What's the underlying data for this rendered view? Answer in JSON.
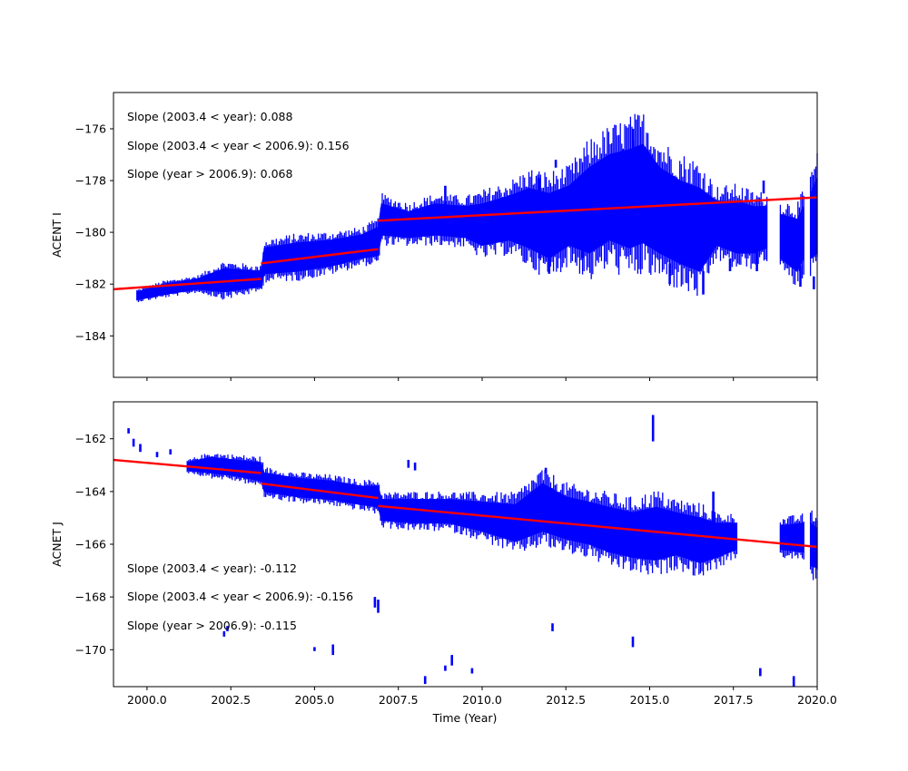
{
  "colors": {
    "data": "#0000ff",
    "fit": "#ff0000",
    "axes": "#000000",
    "background": "#ffffff"
  },
  "chart_data": [
    {
      "type": "scatter",
      "xlabel": "",
      "ylabel": "ACENT I",
      "xlim": [
        1999.0,
        2020.0
      ],
      "ylim": [
        -185.6,
        -174.6
      ],
      "xticks": [
        2000.0,
        2002.5,
        2005.0,
        2007.5,
        2010.0,
        2012.5,
        2015.0,
        2017.5,
        2020.0
      ],
      "xtick_labels": [
        "",
        "",
        "",
        "",
        "",
        "",
        "",
        "",
        ""
      ],
      "yticks": [
        -176,
        -178,
        -180,
        -182,
        -184
      ],
      "ytick_labels": [
        "−176",
        "−178",
        "−180",
        "−182",
        "−184"
      ],
      "annotations": [
        "Slope (2003.4 < year):  0.088",
        "Slope (2003.4 <  year < 2006.9): 0.156",
        "Slope (year > 2006.9):  0.068"
      ],
      "series": [
        {
          "kind": "band",
          "color": "#0000ff",
          "points": [
            {
              "x": 1999.7,
              "low": -182.6,
              "high": -182.3
            },
            {
              "x": 2000.5,
              "low": -182.4,
              "high": -182.0
            },
            {
              "x": 2001.5,
              "low": -182.2,
              "high": -181.8
            },
            {
              "x": 2002.3,
              "low": -182.3,
              "high": -181.4
            },
            {
              "x": 2003.4,
              "low": -182.1,
              "high": -181.5
            },
            {
              "x": 2003.5,
              "low": -181.6,
              "high": -180.6
            },
            {
              "x": 2004.5,
              "low": -181.5,
              "high": -180.4
            },
            {
              "x": 2005.5,
              "low": -181.3,
              "high": -180.3
            },
            {
              "x": 2006.4,
              "low": -181.0,
              "high": -180.1
            },
            {
              "x": 2006.9,
              "low": -180.9,
              "high": -179.8
            },
            {
              "x": 2007.0,
              "low": -180.1,
              "high": -178.9
            },
            {
              "x": 2007.8,
              "low": -180.2,
              "high": -179.2
            },
            {
              "x": 2008.6,
              "low": -180.1,
              "high": -178.9
            },
            {
              "x": 2009.5,
              "low": -180.2,
              "high": -179.0
            },
            {
              "x": 2010.0,
              "low": -180.5,
              "high": -178.9
            },
            {
              "x": 2010.8,
              "low": -180.3,
              "high": -178.6
            },
            {
              "x": 2011.4,
              "low": -180.6,
              "high": -178.3
            },
            {
              "x": 2012.0,
              "low": -181.0,
              "high": -178.5
            },
            {
              "x": 2012.6,
              "low": -180.5,
              "high": -178.2
            },
            {
              "x": 2013.2,
              "low": -180.8,
              "high": -177.5
            },
            {
              "x": 2013.8,
              "low": -180.3,
              "high": -177.0
            },
            {
              "x": 2014.4,
              "low": -180.6,
              "high": -176.8
            },
            {
              "x": 2014.8,
              "low": -180.4,
              "high": -176.6
            },
            {
              "x": 2015.3,
              "low": -180.8,
              "high": -177.5
            },
            {
              "x": 2015.9,
              "low": -181.2,
              "high": -178.0
            },
            {
              "x": 2016.5,
              "low": -181.5,
              "high": -178.3
            },
            {
              "x": 2017.0,
              "low": -180.5,
              "high": -178.8
            },
            {
              "x": 2017.6,
              "low": -180.8,
              "high": -178.8
            },
            {
              "x": 2018.1,
              "low": -180.8,
              "high": -179.0
            },
            {
              "x": 2018.5,
              "low": -180.6,
              "high": -179.0
            }
          ]
        },
        {
          "kind": "band",
          "color": "#0000ff",
          "points": [
            {
              "x": 2018.9,
              "low": -181.0,
              "high": -179.3
            },
            {
              "x": 2019.4,
              "low": -181.5,
              "high": -179.5
            },
            {
              "x": 2019.6,
              "low": -181.0,
              "high": -179.0
            }
          ]
        },
        {
          "kind": "band",
          "color": "#0000ff",
          "points": [
            {
              "x": 2019.8,
              "low": -181.0,
              "high": -178.5
            },
            {
              "x": 2020.0,
              "low": -180.8,
              "high": -177.9
            }
          ]
        },
        {
          "kind": "spikes",
          "color": "#0000ff",
          "points": [
            {
              "x": 2001.0,
              "low": -182.1,
              "high": -181.9
            },
            {
              "x": 2008.9,
              "low": -179.2,
              "high": -178.2
            },
            {
              "x": 2011.7,
              "low": -181.0,
              "high": -177.9
            },
            {
              "x": 2012.0,
              "low": -181.6,
              "high": -181.0
            },
            {
              "x": 2012.2,
              "low": -177.5,
              "high": -177.2
            },
            {
              "x": 2013.0,
              "low": -181.0,
              "high": -180.2
            },
            {
              "x": 2014.2,
              "low": -177.3,
              "high": -176.8
            },
            {
              "x": 2014.5,
              "low": -177.5,
              "high": -176.0
            },
            {
              "x": 2015.6,
              "low": -182.0,
              "high": -181.2
            },
            {
              "x": 2016.6,
              "low": -182.4,
              "high": -181.5
            },
            {
              "x": 2017.4,
              "low": -181.5,
              "high": -181.0
            },
            {
              "x": 2017.8,
              "low": -180.5,
              "high": -179.5
            },
            {
              "x": 2018.2,
              "low": -181.5,
              "high": -180.5
            },
            {
              "x": 2018.4,
              "low": -178.5,
              "high": -178.0
            },
            {
              "x": 2019.5,
              "low": -182.1,
              "high": -181.3
            },
            {
              "x": 2019.9,
              "low": -182.2,
              "high": -181.7
            }
          ]
        },
        {
          "kind": "fit",
          "color": "#ff0000",
          "segments": [
            {
              "x": [
                1999.0,
                2003.4
              ],
              "y": [
                -182.2,
                -181.8
              ]
            },
            {
              "x": [
                2003.4,
                2006.9
              ],
              "y": [
                -181.2,
                -180.65
              ]
            },
            {
              "x": [
                2006.9,
                2020.0
              ],
              "y": [
                -179.55,
                -178.65
              ]
            }
          ]
        }
      ]
    },
    {
      "type": "scatter",
      "xlabel": "Time (Year)",
      "ylabel": "ACNET J",
      "xlim": [
        1999.0,
        2020.0
      ],
      "ylim": [
        -171.4,
        -160.6
      ],
      "xticks": [
        2000.0,
        2002.5,
        2005.0,
        2007.5,
        2010.0,
        2012.5,
        2015.0,
        2017.5,
        2020.0
      ],
      "xtick_labels": [
        "2000.0",
        "2002.5",
        "2005.0",
        "2007.5",
        "2010.0",
        "2012.5",
        "2015.0",
        "2017.5",
        "2020.0"
      ],
      "yticks": [
        -162,
        -164,
        -166,
        -168,
        -170
      ],
      "ytick_labels": [
        "−162",
        "−164",
        "−166",
        "−168",
        "−170"
      ],
      "annotations": [
        "Slope (2003.4 < year):  -0.112",
        "Slope (2003.4 <  year < 2006.9): -0.156",
        "Slope (year > 2006.9):  -0.115"
      ],
      "series": [
        {
          "kind": "band",
          "color": "#0000ff",
          "points": [
            {
              "x": 2001.2,
              "low": -163.2,
              "high": -162.9
            },
            {
              "x": 2001.9,
              "low": -163.3,
              "high": -162.7
            },
            {
              "x": 2002.6,
              "low": -163.4,
              "high": -162.8
            },
            {
              "x": 2003.4,
              "low": -163.6,
              "high": -162.9
            },
            {
              "x": 2003.5,
              "low": -164.0,
              "high": -163.3
            },
            {
              "x": 2004.5,
              "low": -164.2,
              "high": -163.5
            },
            {
              "x": 2005.5,
              "low": -164.3,
              "high": -163.6
            },
            {
              "x": 2006.4,
              "low": -164.5,
              "high": -163.8
            },
            {
              "x": 2006.9,
              "low": -164.6,
              "high": -163.8
            },
            {
              "x": 2007.0,
              "low": -165.1,
              "high": -164.3
            },
            {
              "x": 2008.0,
              "low": -165.2,
              "high": -164.3
            },
            {
              "x": 2009.0,
              "low": -165.2,
              "high": -164.3
            },
            {
              "x": 2010.0,
              "low": -165.5,
              "high": -164.4
            },
            {
              "x": 2011.0,
              "low": -165.9,
              "high": -164.5
            },
            {
              "x": 2011.8,
              "low": -165.5,
              "high": -163.7
            },
            {
              "x": 2012.5,
              "low": -165.8,
              "high": -164.2
            },
            {
              "x": 2013.2,
              "low": -166.0,
              "high": -164.4
            },
            {
              "x": 2013.8,
              "low": -166.3,
              "high": -164.6
            },
            {
              "x": 2014.5,
              "low": -166.5,
              "high": -164.8
            },
            {
              "x": 2015.2,
              "low": -166.6,
              "high": -164.6
            },
            {
              "x": 2015.8,
              "low": -166.4,
              "high": -164.8
            },
            {
              "x": 2016.5,
              "low": -166.7,
              "high": -165.0
            },
            {
              "x": 2017.0,
              "low": -166.5,
              "high": -165.2
            },
            {
              "x": 2017.6,
              "low": -166.2,
              "high": -165.2
            }
          ]
        },
        {
          "kind": "band",
          "color": "#0000ff",
          "points": [
            {
              "x": 2018.9,
              "low": -166.2,
              "high": -165.3
            },
            {
              "x": 2019.6,
              "low": -166.3,
              "high": -165.2
            }
          ]
        },
        {
          "kind": "band",
          "color": "#0000ff",
          "points": [
            {
              "x": 2019.8,
              "low": -166.8,
              "high": -165.2
            },
            {
              "x": 2020.0,
              "low": -166.9,
              "high": -165.4
            }
          ]
        },
        {
          "kind": "spikes",
          "color": "#0000ff",
          "points": [
            {
              "x": 1999.45,
              "low": -161.8,
              "high": -161.6
            },
            {
              "x": 1999.6,
              "low": -162.3,
              "high": -162.0
            },
            {
              "x": 1999.8,
              "low": -162.5,
              "high": -162.2
            },
            {
              "x": 2000.3,
              "low": -162.7,
              "high": -162.5
            },
            {
              "x": 2000.7,
              "low": -162.6,
              "high": -162.4
            },
            {
              "x": 2002.3,
              "low": -169.5,
              "high": -169.3
            },
            {
              "x": 2002.4,
              "low": -169.3,
              "high": -169.1
            },
            {
              "x": 2005.0,
              "low": -170.05,
              "high": -169.9
            },
            {
              "x": 2005.55,
              "low": -170.2,
              "high": -169.8
            },
            {
              "x": 2007.8,
              "low": -163.1,
              "high": -162.8
            },
            {
              "x": 2008.0,
              "low": -163.2,
              "high": -162.9
            },
            {
              "x": 2008.3,
              "low": -171.3,
              "high": -171.0
            },
            {
              "x": 2008.9,
              "low": -170.8,
              "high": -170.6
            },
            {
              "x": 2009.1,
              "low": -170.6,
              "high": -170.2
            },
            {
              "x": 2009.7,
              "low": -170.9,
              "high": -170.7
            },
            {
              "x": 2006.8,
              "low": -168.4,
              "high": -168.0
            },
            {
              "x": 2006.9,
              "low": -168.6,
              "high": -168.1
            },
            {
              "x": 2011.9,
              "low": -163.3,
              "high": -163.1
            },
            {
              "x": 2012.1,
              "low": -169.3,
              "high": -169.0
            },
            {
              "x": 2014.5,
              "low": -169.9,
              "high": -169.5
            },
            {
              "x": 2015.1,
              "low": -162.1,
              "high": -161.1
            },
            {
              "x": 2016.9,
              "low": -165.3,
              "high": -164.0
            },
            {
              "x": 2018.3,
              "low": -171.0,
              "high": -170.7
            },
            {
              "x": 2019.3,
              "low": -171.4,
              "high": -171.0
            }
          ]
        },
        {
          "kind": "fit",
          "color": "#ff0000",
          "segments": [
            {
              "x": [
                1999.0,
                2003.4
              ],
              "y": [
                -162.8,
                -163.3
              ]
            },
            {
              "x": [
                2003.4,
                2006.9
              ],
              "y": [
                -163.7,
                -164.25
              ]
            },
            {
              "x": [
                2006.9,
                2020.0
              ],
              "y": [
                -164.55,
                -166.1
              ]
            }
          ]
        }
      ]
    }
  ]
}
